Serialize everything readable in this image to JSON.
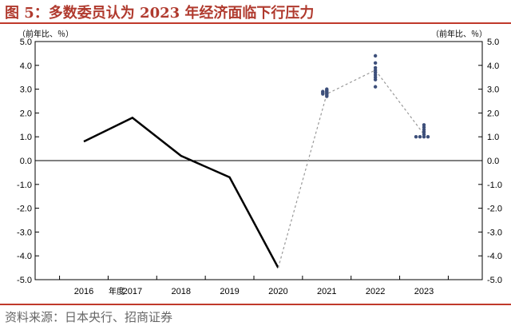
{
  "title": "图 5：多数委员认为 2023 年经济面临下行压力",
  "source": "资料来源：日本央行、招商证券",
  "chart_data": {
    "type": "line",
    "unit_left": "（前年比、％）",
    "unit_right": "（前年比、％）",
    "fiscal_year_label": "年度",
    "ylim": [
      -5.0,
      5.0
    ],
    "y_ticks": [
      "5.0",
      "4.0",
      "3.0",
      "2.0",
      "1.0",
      "0.0",
      "-1.0",
      "-2.0",
      "-3.0",
      "-4.0",
      "-5.0"
    ],
    "y_tick_values": [
      5,
      4,
      3,
      2,
      1,
      0,
      -1,
      -2,
      -3,
      -4,
      -5
    ],
    "categories": [
      "2016",
      "2017",
      "2018",
      "2019",
      "2020",
      "2021",
      "2022",
      "2023"
    ],
    "grid": false,
    "series": [
      {
        "style": "solid",
        "color": "#000000",
        "points": [
          [
            "2016",
            0.8
          ],
          [
            "2017",
            1.8
          ],
          [
            "2018",
            0.2
          ],
          [
            "2019",
            -0.7
          ],
          [
            "2020",
            -4.5
          ]
        ]
      },
      {
        "style": "dashed",
        "color": "#999999",
        "points": [
          [
            "2020",
            -4.5
          ],
          [
            "2021",
            2.8
          ],
          [
            "2022",
            3.8
          ],
          [
            "2023",
            1.1
          ]
        ]
      }
    ],
    "forecast_dots": [
      {
        "year": "2021",
        "values": [
          3.0,
          2.95,
          2.9,
          2.85,
          2.8,
          2.75,
          2.7,
          2.9,
          2.8,
          2.85
        ],
        "color": "#3d4f7a"
      },
      {
        "year": "2022",
        "values": [
          4.4,
          4.1,
          3.9,
          3.8,
          3.7,
          3.6,
          3.5,
          3.4,
          3.1
        ],
        "color": "#3d4f7a"
      },
      {
        "year": "2023",
        "values": [
          1.5,
          1.4,
          1.3,
          1.2,
          1.1,
          1.0,
          1.0,
          1.0,
          1.0
        ],
        "color": "#3d4f7a"
      }
    ]
  }
}
